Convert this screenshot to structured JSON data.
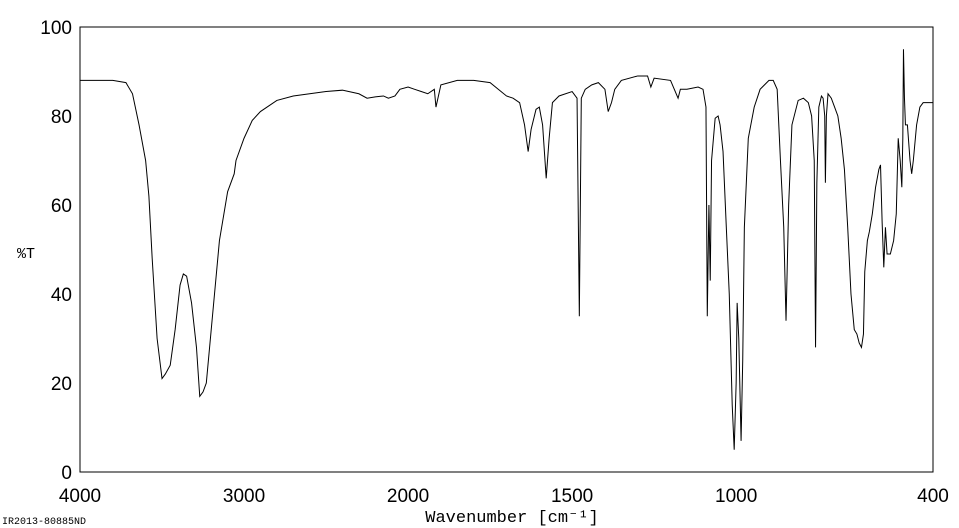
{
  "chart_data": {
    "type": "line",
    "ylabel": "%T",
    "xlabel": "Wavenumber [cm⁻¹]",
    "footnote": "IR2013-80885ND",
    "xlim": [
      4000,
      400
    ],
    "ylim": [
      0,
      100
    ],
    "xscale_break": 2000,
    "xscale_factor": 2,
    "xticks": [
      4000,
      3000,
      2000,
      1500,
      1000,
      400
    ],
    "yticks": [
      0,
      20,
      40,
      60,
      80,
      100
    ],
    "color": "#000000",
    "x": [
      4000,
      3800,
      3720,
      3680,
      3640,
      3600,
      3580,
      3560,
      3530,
      3500,
      3480,
      3450,
      3420,
      3390,
      3370,
      3350,
      3320,
      3290,
      3270,
      3250,
      3230,
      3200,
      3150,
      3100,
      3060,
      3049,
      3000,
      2950,
      2900,
      2800,
      2700,
      2600,
      2500,
      2400,
      2300,
      2250,
      2200,
      2150,
      2120,
      2080,
      2050,
      2000,
      1980,
      1960,
      1940,
      1920,
      1915,
      1900,
      1850,
      1800,
      1750,
      1700,
      1680,
      1660,
      1645,
      1634,
      1625,
      1610,
      1600,
      1590,
      1579,
      1570,
      1560,
      1540,
      1500,
      1485,
      1478,
      1472,
      1460,
      1440,
      1420,
      1400,
      1390,
      1380,
      1370,
      1350,
      1300,
      1270,
      1260,
      1250,
      1200,
      1177,
      1170,
      1150,
      1116,
      1101,
      1092,
      1088,
      1083,
      1079,
      1075,
      1064,
      1055,
      1049,
      1040,
      1030,
      1021,
      1012,
      1006,
      1000,
      997,
      992,
      985,
      980,
      975,
      963,
      945,
      927,
      900,
      887,
      875,
      865,
      855,
      848,
      840,
      830,
      811,
      795,
      780,
      770,
      762,
      758,
      754,
      748,
      740,
      735,
      730,
      728,
      725,
      720,
      710,
      700,
      690,
      680,
      670,
      660,
      650,
      640,
      632,
      625,
      618,
      612,
      608,
      600,
      594,
      585,
      575,
      565,
      560,
      555,
      550,
      545,
      540,
      530,
      520,
      512,
      506,
      500,
      495,
      492,
      490,
      487,
      484,
      478,
      470,
      465,
      460,
      450,
      440,
      430,
      410,
      400
    ],
    "values": [
      88,
      88,
      87.5,
      85,
      78,
      70,
      62,
      48,
      30,
      21,
      22,
      24,
      32,
      42,
      44.5,
      44,
      38,
      28,
      17,
      18,
      20,
      32,
      52,
      63,
      67,
      70,
      75,
      79,
      81,
      83.5,
      84.5,
      85,
      85.5,
      85.8,
      85,
      84,
      84.3,
      84.5,
      84,
      84.5,
      86,
      86.5,
      86,
      85.5,
      85,
      86,
      82,
      87,
      88,
      88,
      87.5,
      84.5,
      84,
      83,
      78,
      72,
      77,
      81.5,
      82,
      78,
      66,
      75,
      83,
      84.5,
      85.5,
      84,
      35,
      84,
      86,
      87,
      87.5,
      86,
      81,
      83,
      86,
      88,
      89,
      89,
      86.5,
      88.5,
      88,
      84,
      86,
      86,
      86.5,
      86,
      82,
      35,
      60,
      43,
      70,
      79.5,
      80,
      78,
      72,
      55,
      40,
      15,
      5,
      20,
      38,
      30,
      7,
      25,
      55,
      75,
      82,
      86,
      88,
      88,
      86,
      70,
      55,
      34,
      60,
      78,
      83.5,
      84,
      83,
      80,
      70,
      28,
      65,
      82,
      84.5,
      84,
      80,
      65,
      80,
      85,
      84,
      82,
      80,
      75,
      68,
      55,
      40,
      32,
      31,
      29,
      28,
      31,
      45,
      52,
      54,
      58,
      64,
      68,
      69,
      56,
      46,
      55,
      49,
      49,
      52,
      58,
      75,
      70,
      64,
      75,
      95,
      84,
      78,
      78,
      70,
      67,
      70,
      78,
      82,
      83,
      83,
      83
    ]
  }
}
